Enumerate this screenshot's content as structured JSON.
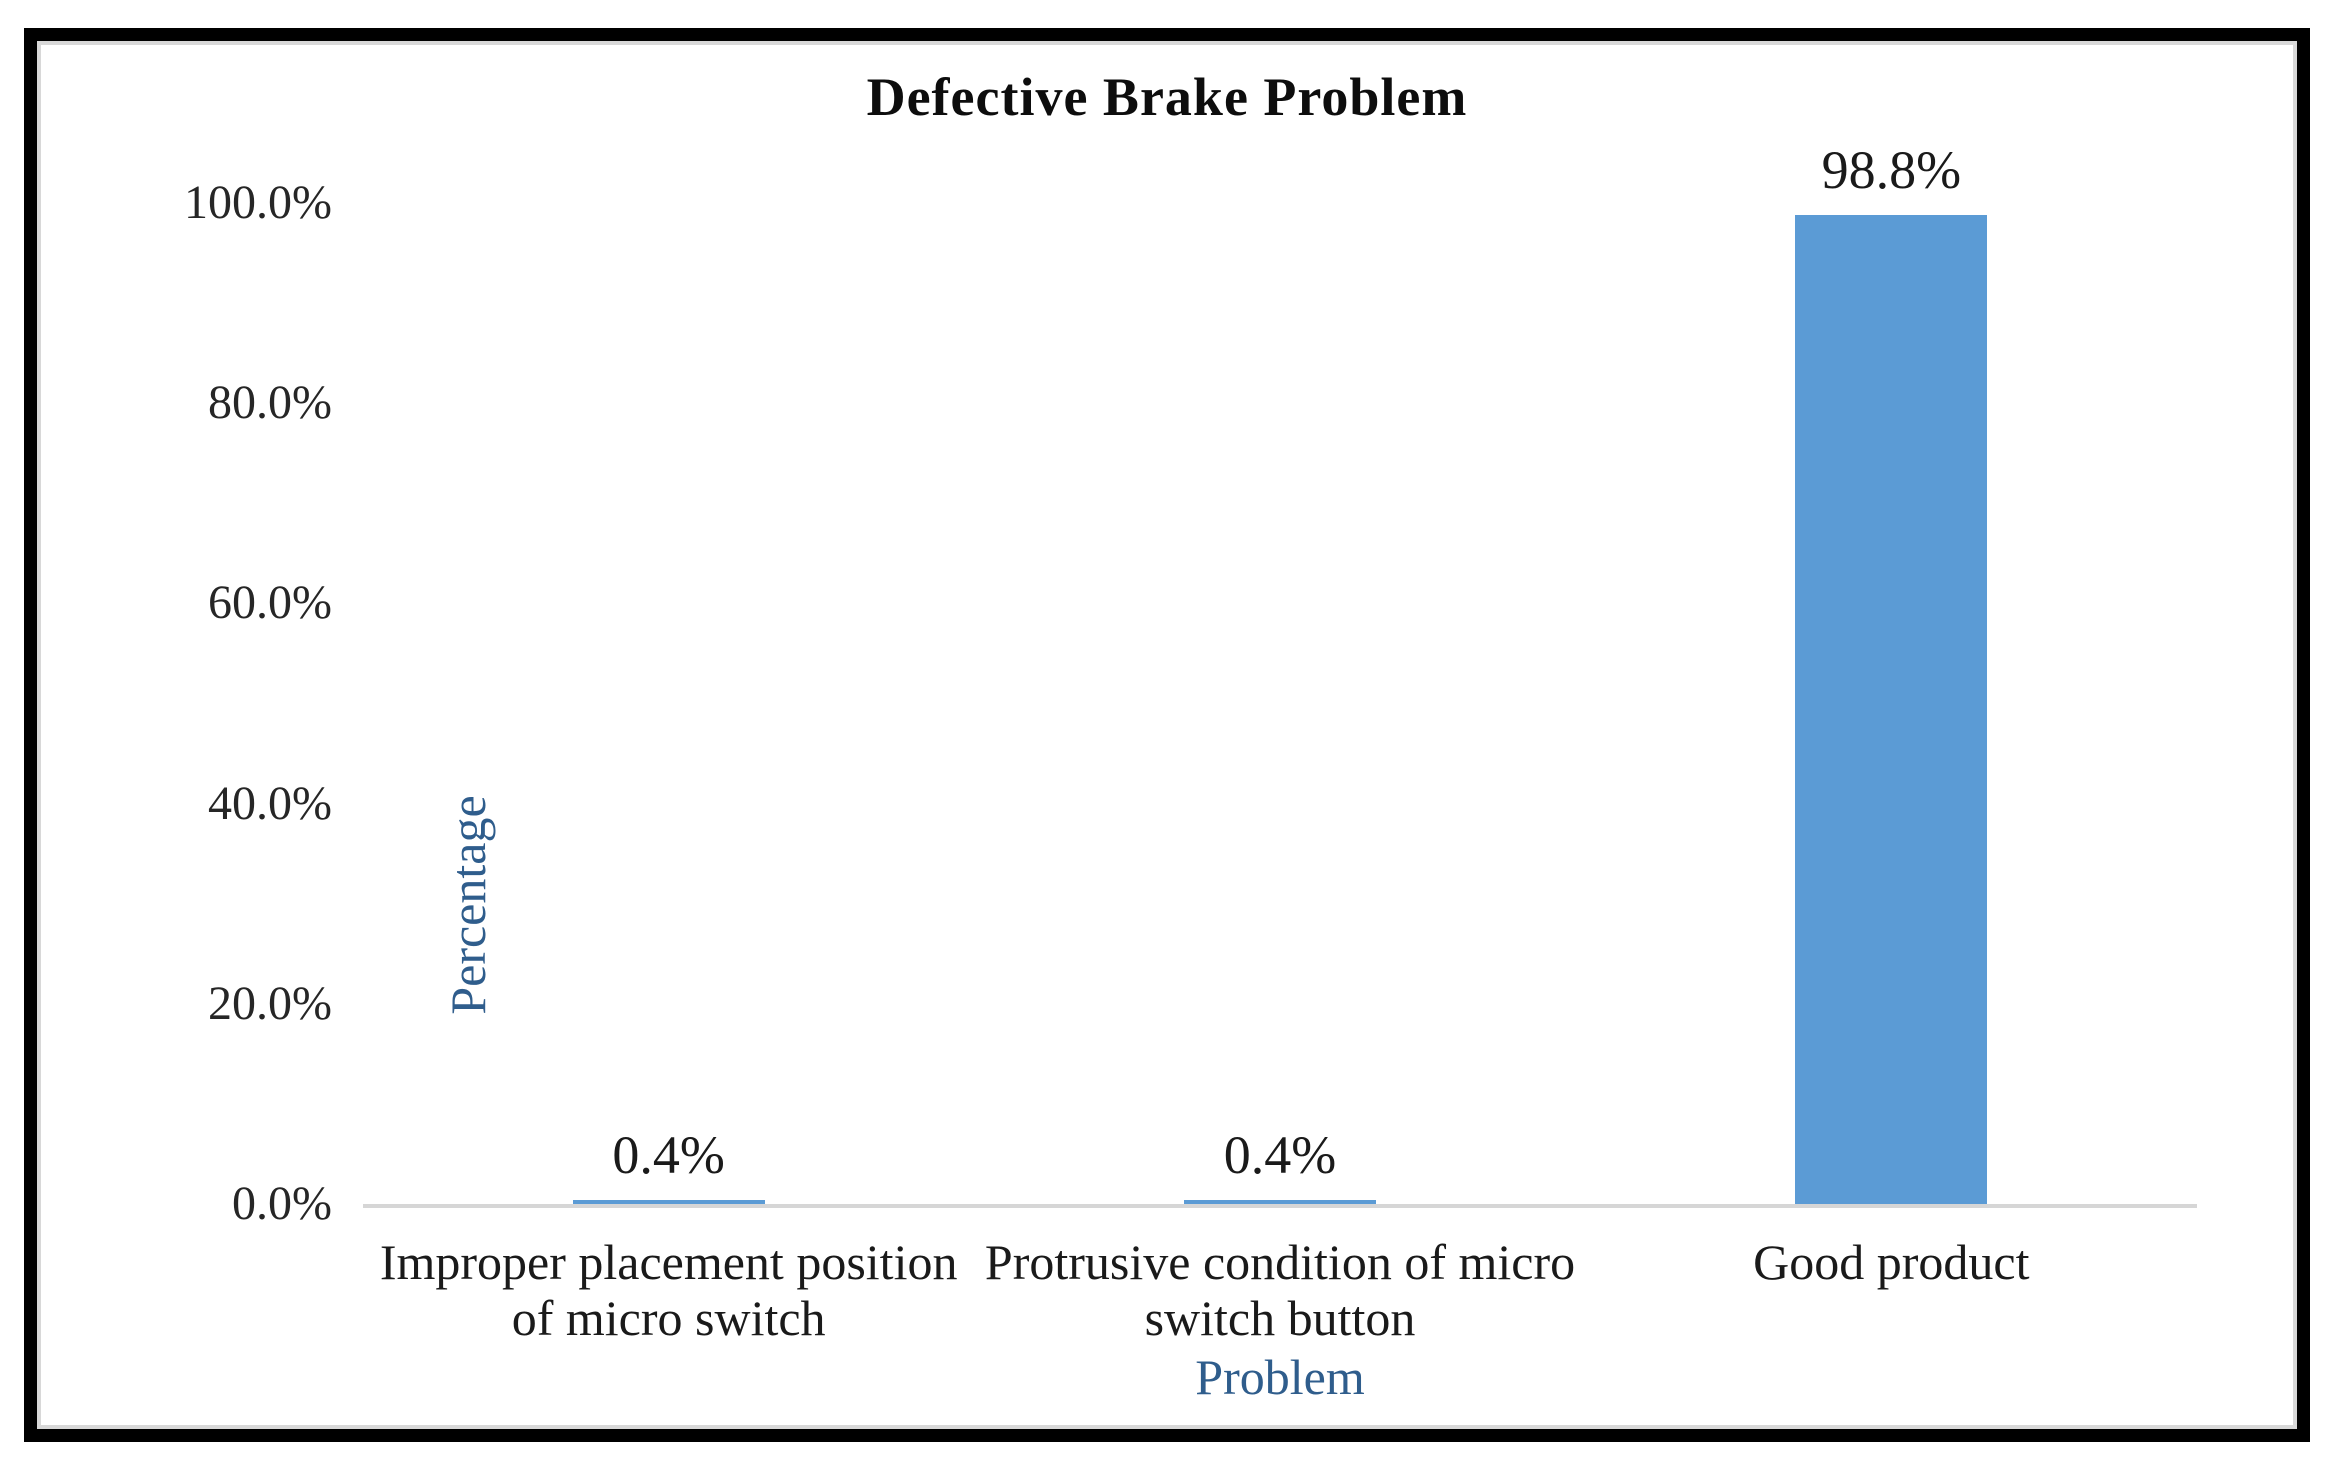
{
  "chart_data": {
    "type": "bar",
    "title": "Defective Brake Problem",
    "categories": [
      "Improper placement position of micro switch",
      "Protrusive condition of micro switch button",
      "Good product"
    ],
    "values": [
      0.4,
      0.4,
      98.8
    ],
    "data_labels": [
      "0.4%",
      "0.4%",
      "98.8%"
    ],
    "xlabel": "Problem",
    "ylabel": "Percentage",
    "ylim": [
      0,
      100
    ],
    "yticks": [
      {
        "label": "100.0%",
        "value": 100
      },
      {
        "label": "80.0%",
        "value": 80
      },
      {
        "label": "60.0%",
        "value": 60
      },
      {
        "label": "40.0%",
        "value": 40
      },
      {
        "label": "20.0%",
        "value": 20
      },
      {
        "label": "0.0%",
        "value": 0
      }
    ],
    "grid": false,
    "legend_position": "none",
    "bar_color": "#5B9BD5",
    "axis_line_color": "#D6D6D6",
    "axis_title_color": "#2F5D8C",
    "title_color": "#0D0D0D",
    "frame_border_color": "#000000"
  }
}
